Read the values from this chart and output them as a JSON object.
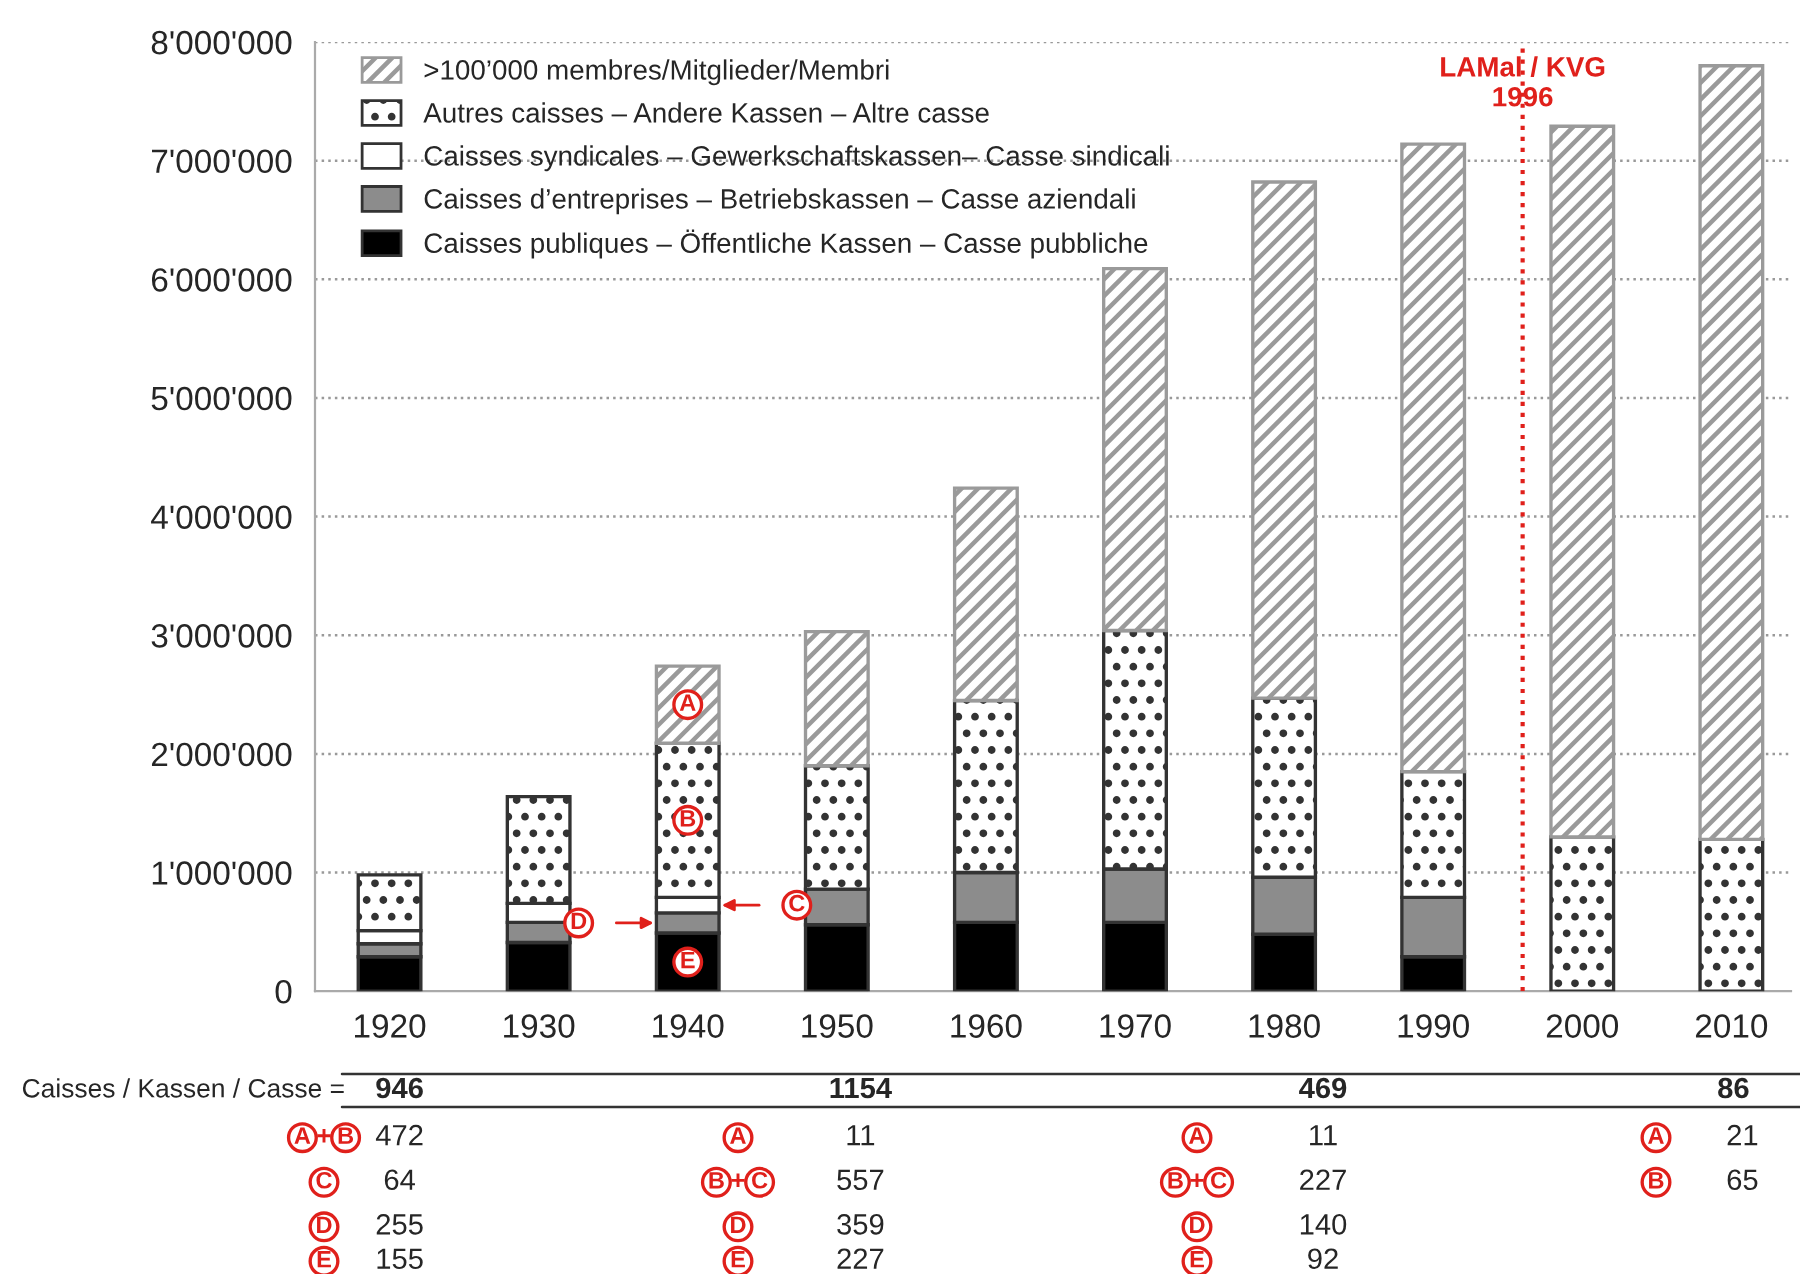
{
  "chart_data": {
    "type": "bar",
    "stacked": true,
    "x": [
      1920,
      1930,
      1940,
      1950,
      1960,
      1970,
      1980,
      1990,
      2000,
      2010
    ],
    "xlim": [
      1915,
      2014
    ],
    "xticks": [
      1920,
      1930,
      1940,
      1950,
      1960,
      1970,
      1980,
      1990,
      2000,
      2010
    ],
    "ylim": [
      0,
      8000000
    ],
    "yticks": [
      {
        "value": 0,
        "label": "0"
      },
      {
        "value": 1000000,
        "label": "1'000'000"
      },
      {
        "value": 2000000,
        "label": "2'000'000"
      },
      {
        "value": 3000000,
        "label": "3'000'000"
      },
      {
        "value": 4000000,
        "label": "4'000'000"
      },
      {
        "value": 5000000,
        "label": "5'000'000"
      },
      {
        "value": 6000000,
        "label": "6'000'000"
      },
      {
        "value": 7000000,
        "label": "7'000'000"
      },
      {
        "value": 8000000,
        "label": "8'000'000"
      }
    ],
    "grid": "y",
    "legend": "top left",
    "series": [
      {
        "name": "Caisses publiques – Öffentliche Kassen – Casse pubbliche",
        "color": "#000000",
        "values": [
          290000,
          410000,
          490000,
          560000,
          580000,
          580000,
          480000,
          290000,
          null,
          null
        ]
      },
      {
        "name": "Caisses d’entreprises – Betriebskassen – Casse aziendali",
        "color": "#8c8c8c",
        "values": [
          110000,
          170000,
          170000,
          300000,
          420000,
          450000,
          480000,
          500000,
          null,
          null
        ]
      },
      {
        "name": "Caisses syndicales – Gewerkschaftskassen– Casse sindicali",
        "color": "#ffffff",
        "values": [
          110000,
          160000,
          130000,
          null,
          null,
          null,
          null,
          null,
          null,
          null
        ]
      },
      {
        "name": "Autres caisses – Andere Kassen – Altre casse",
        "color": "#333333",
        "values": [
          470000,
          900000,
          1300000,
          1040000,
          1450000,
          2010000,
          1510000,
          1060000,
          1300000,
          1280000
        ]
      },
      {
        "name": ">100’000 membres/Mitglieder/Membri",
        "color": "#9a9a9a",
        "values": [
          null,
          null,
          650000,
          1130000,
          1790000,
          3050000,
          4350000,
          5290000,
          5990000,
          6520000
        ]
      }
    ],
    "ref_lines": [
      {
        "axis": "x",
        "value": 1996,
        "label": "LAMal / KVG\n1996",
        "color": "#e0201b",
        "line_style": "dotted"
      }
    ],
    "annotations": [
      "A",
      "B",
      "C",
      "D",
      "E",
      "Caisses / Kassen / Casse =",
      "946",
      "1154",
      "469",
      "86",
      "A+B",
      "472",
      "C",
      "64",
      "D",
      "255",
      "E",
      "155",
      "A",
      "11",
      "B+C",
      "557",
      "D",
      "359",
      "E",
      "227",
      "A",
      "11",
      "B+C",
      "227",
      "D",
      "140",
      "E",
      "92",
      "A",
      "21",
      "B",
      "65"
    ]
  }
}
